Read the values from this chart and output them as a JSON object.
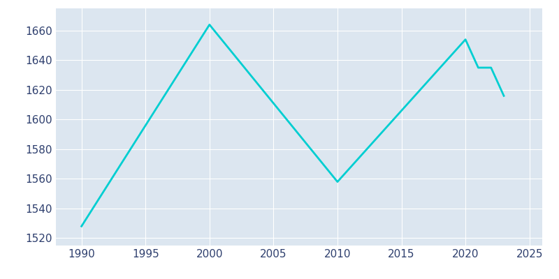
{
  "years": [
    1990,
    2000,
    2010,
    2020,
    2021,
    2022,
    2023
  ],
  "population": [
    1528,
    1664,
    1558,
    1654,
    1635,
    1635,
    1616
  ],
  "line_color": "#00CED1",
  "bg_color": "#dce6f0",
  "fig_bg_color": "#ffffff",
  "grid_color": "#ffffff",
  "text_color": "#2e3f6e",
  "xlim": [
    1988,
    2026
  ],
  "ylim": [
    1515,
    1675
  ],
  "xticks": [
    1990,
    1995,
    2000,
    2005,
    2010,
    2015,
    2020,
    2025
  ],
  "yticks": [
    1520,
    1540,
    1560,
    1580,
    1600,
    1620,
    1640,
    1660
  ],
  "line_width": 2.0,
  "tick_label_size": 11
}
